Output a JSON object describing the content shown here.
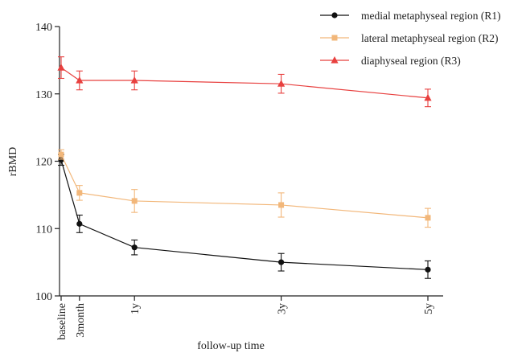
{
  "chart_data": {
    "type": "line",
    "xlabel": "follow-up time",
    "ylabel": "rBMD",
    "ylim": [
      100,
      140
    ],
    "yticks": [
      100,
      110,
      120,
      130,
      140
    ],
    "x_tick_labels": [
      {
        "label": "baseline",
        "x": 0
      },
      {
        "label": "3month",
        "x": 0.25
      },
      {
        "label": "1y",
        "x": 1
      },
      {
        "label": "3y",
        "x": 3
      },
      {
        "label": "5y",
        "x": 5
      }
    ],
    "x": [
      0,
      0.25,
      1,
      3,
      5
    ],
    "xlim": [
      0,
      5.5
    ],
    "grid": false,
    "legend_position": "top-right",
    "series": [
      {
        "name": "medial metaphyseal region (R1)",
        "color": "#111111",
        "marker": "circle",
        "values": [
          120.2,
          110.7,
          107.2,
          105.0,
          103.9
        ],
        "errors": [
          0.8,
          1.3,
          1.1,
          1.3,
          1.3
        ]
      },
      {
        "name": "lateral metaphyseal region (R2)",
        "color": "#f2b77a",
        "marker": "square",
        "values": [
          121.0,
          115.3,
          114.1,
          113.5,
          111.6
        ],
        "errors": [
          0.7,
          1.1,
          1.7,
          1.8,
          1.4
        ]
      },
      {
        "name": "diaphyseal region (R3)",
        "color": "#e8403f",
        "marker": "triangle",
        "values": [
          133.9,
          132.0,
          132.0,
          131.5,
          129.4
        ],
        "errors": [
          1.6,
          1.4,
          1.4,
          1.4,
          1.3
        ]
      }
    ]
  }
}
